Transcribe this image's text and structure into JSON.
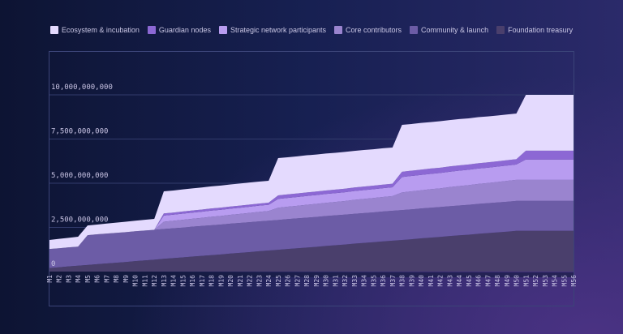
{
  "chart_data": {
    "type": "area",
    "stacked": true,
    "title": "",
    "xlabel": "",
    "ylabel": "",
    "ylim": [
      0,
      11600000000
    ],
    "grid": true,
    "legend_position": "top",
    "y_ticks": [
      {
        "value": 0,
        "label": "0"
      },
      {
        "value": 2500000000,
        "label": "2,500,000,000"
      },
      {
        "value": 5000000000,
        "label": "5,000,000,000"
      },
      {
        "value": 7500000000,
        "label": "7,500,000,000"
      },
      {
        "value": 10000000000,
        "label": "10,000,000,000"
      }
    ],
    "categories": [
      "M1",
      "M2",
      "M3",
      "M4",
      "M5",
      "M6",
      "M7",
      "M8",
      "M9",
      "M10",
      "M11",
      "M12",
      "M13",
      "M14",
      "M15",
      "M16",
      "M17",
      "M18",
      "M19",
      "M20",
      "M21",
      "M22",
      "M23",
      "M24",
      "M25",
      "M26",
      "M27",
      "M28",
      "M29",
      "M30",
      "M31",
      "M32",
      "M33",
      "M34",
      "M35",
      "M36",
      "M37",
      "M38",
      "M39",
      "M40",
      "M41",
      "M42",
      "M43",
      "M44",
      "M45",
      "M46",
      "M47",
      "M48",
      "M49",
      "M50",
      "M51",
      "M52",
      "M53",
      "M54",
      "M55",
      "M56"
    ],
    "series": [
      {
        "name": "Foundation treasury",
        "color": "#4a3f6c",
        "values": [
          200000000.0,
          240000000.0,
          290000000.0,
          330000000.0,
          370000000.0,
          420000000.0,
          460000000.0,
          500000000.0,
          540000000.0,
          590000000.0,
          630000000.0,
          670000000.0,
          720000000.0,
          760000000.0,
          800000000.0,
          850000000.0,
          890000000.0,
          930000000.0,
          970000000.0,
          1020000000.0,
          1060000000.0,
          1100000000.0,
          1150000000.0,
          1190000000.0,
          1230000000.0,
          1280000000.0,
          1320000000.0,
          1360000000.0,
          1400000000.0,
          1450000000.0,
          1490000000.0,
          1530000000.0,
          1580000000.0,
          1620000000.0,
          1660000000.0,
          1710000000.0,
          1750000000.0,
          1790000000.0,
          1830000000.0,
          1880000000.0,
          1920000000.0,
          1960000000.0,
          2010000000.0,
          2050000000.0,
          2090000000.0,
          2140000000.0,
          2180000000.0,
          2220000000.0,
          2260000000.0,
          2310000000.0,
          2310000000.0,
          2310000000.0,
          2310000000.0,
          2310000000.0,
          2310000000.0,
          2310000000.0
        ]
      },
      {
        "name": "Community & launch",
        "color": "#6c5ca6",
        "values": [
          1080000000.0,
          1080000000.0,
          1080000000.0,
          1080000000.0,
          1690000000.0,
          1690000000.0,
          1690000000.0,
          1690000000.0,
          1690000000.0,
          1690000000.0,
          1690000000.0,
          1690000000.0,
          1690000000.0,
          1690000000.0,
          1690000000.0,
          1690000000.0,
          1690000000.0,
          1690000000.0,
          1690000000.0,
          1690000000.0,
          1690000000.0,
          1690000000.0,
          1690000000.0,
          1690000000.0,
          1690000000.0,
          1690000000.0,
          1690000000.0,
          1690000000.0,
          1690000000.0,
          1690000000.0,
          1690000000.0,
          1690000000.0,
          1690000000.0,
          1690000000.0,
          1690000000.0,
          1690000000.0,
          1690000000.0,
          1690000000.0,
          1690000000.0,
          1690000000.0,
          1690000000.0,
          1690000000.0,
          1690000000.0,
          1690000000.0,
          1690000000.0,
          1690000000.0,
          1690000000.0,
          1690000000.0,
          1690000000.0,
          1690000000.0,
          1690000000.0,
          1690000000.0,
          1690000000.0,
          1690000000.0,
          1690000000.0,
          1690000000.0
        ]
      },
      {
        "name": "Core contributors",
        "color": "#9a84cf",
        "values": [
          0,
          0,
          0,
          0,
          0,
          0,
          0,
          0,
          0,
          0,
          0,
          0,
          410000000.0,
          420000000.0,
          440000000.0,
          450000000.0,
          460000000.0,
          480000000.0,
          490000000.0,
          500000000.0,
          510000000.0,
          530000000.0,
          540000000.0,
          550000000.0,
          690000000.0,
          700000000.0,
          710000000.0,
          730000000.0,
          740000000.0,
          750000000.0,
          760000000.0,
          770000000.0,
          790000000.0,
          800000000.0,
          810000000.0,
          820000000.0,
          830000000.0,
          1000000000.0,
          1020000000.0,
          1030000000.0,
          1050000000.0,
          1060000000.0,
          1080000000.0,
          1100000000.0,
          1110000000.0,
          1130000000.0,
          1140000000.0,
          1160000000.0,
          1180000000.0,
          1190000000.0,
          1190000000.0,
          1190000000.0,
          1190000000.0,
          1190000000.0,
          1190000000.0,
          1190000000.0
        ]
      },
      {
        "name": "Strategic network participants",
        "color": "#b89cf0",
        "values": [
          0,
          0,
          0,
          0,
          0,
          0,
          0,
          0,
          0,
          0,
          0,
          0,
          350000000.0,
          350000000.0,
          350000000.0,
          350000000.0,
          350000000.0,
          350000000.0,
          350000000.0,
          350000000.0,
          350000000.0,
          350000000.0,
          350000000.0,
          350000000.0,
          500000000.0,
          500000000.0,
          500000000.0,
          500000000.0,
          500000000.0,
          500000000.0,
          500000000.0,
          500000000.0,
          500000000.0,
          500000000.0,
          500000000.0,
          500000000.0,
          500000000.0,
          870000000.0,
          870000000.0,
          870000000.0,
          870000000.0,
          870000000.0,
          870000000.0,
          870000000.0,
          870000000.0,
          870000000.0,
          870000000.0,
          870000000.0,
          870000000.0,
          870000000.0,
          1150000000.0,
          1150000000.0,
          1150000000.0,
          1150000000.0,
          1150000000.0,
          1150000000.0
        ]
      },
      {
        "name": "Guardian nodes",
        "color": "#8c68d4",
        "values": [
          0,
          0,
          0,
          0,
          0,
          0,
          0,
          0,
          0,
          0,
          0,
          0,
          120000000.0,
          120000000.0,
          120000000.0,
          120000000.0,
          120000000.0,
          120000000.0,
          120000000.0,
          120000000.0,
          120000000.0,
          120000000.0,
          120000000.0,
          120000000.0,
          200000000.0,
          200000000.0,
          200000000.0,
          200000000.0,
          200000000.0,
          200000000.0,
          200000000.0,
          200000000.0,
          200000000.0,
          200000000.0,
          200000000.0,
          200000000.0,
          200000000.0,
          300000000.0,
          300000000.0,
          300000000.0,
          300000000.0,
          300000000.0,
          300000000.0,
          300000000.0,
          300000000.0,
          300000000.0,
          300000000.0,
          300000000.0,
          300000000.0,
          300000000.0,
          500000000.0,
          500000000.0,
          500000000.0,
          500000000.0,
          500000000.0,
          500000000.0
        ]
      },
      {
        "name": "Ecosystem & incubation",
        "color": "#e4dafe",
        "values": [
          510000000.0,
          530000000.0,
          540000000.0,
          560000000.0,
          550000000.0,
          550000000.0,
          570000000.0,
          580000000.0,
          590000000.0,
          600000000.0,
          610000000.0,
          620000000.0,
          1250000000.0,
          1250000000.0,
          1250000000.0,
          1250000000.0,
          1250000000.0,
          1250000000.0,
          1250000000.0,
          1250000000.0,
          1250000000.0,
          1250000000.0,
          1240000000.0,
          1240000000.0,
          2110000000.0,
          2100000000.0,
          2100000000.0,
          2100000000.0,
          2090000000.0,
          2090000000.0,
          2080000000.0,
          2080000000.0,
          2070000000.0,
          2070000000.0,
          2060000000.0,
          2060000000.0,
          2050000000.0,
          2650000000.0,
          2640000000.0,
          2640000000.0,
          2630000000.0,
          2630000000.0,
          2620000000.0,
          2620000000.0,
          2610000000.0,
          2610000000.0,
          2600000000.0,
          2590000000.0,
          2590000000.0,
          2580000000.0,
          3160000000.0,
          3160000000.0,
          3160000000.0,
          3160000000.0,
          3160000000.0,
          3160000000.0
        ]
      }
    ]
  },
  "legend": [
    {
      "label": "Ecosystem & incubation",
      "color": "#e4dafe"
    },
    {
      "label": "Guardian nodes",
      "color": "#8c68d4"
    },
    {
      "label": "Strategic network participants",
      "color": "#b89cf0"
    },
    {
      "label": "Core contributors",
      "color": "#9a84cf"
    },
    {
      "label": "Community & launch",
      "color": "#6c5ca6"
    },
    {
      "label": "Foundation treasury",
      "color": "#4a3f6c"
    }
  ]
}
